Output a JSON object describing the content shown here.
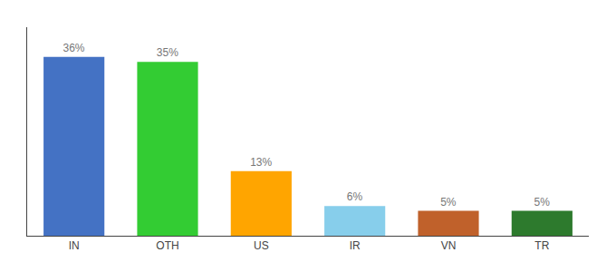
{
  "chart_data": {
    "type": "bar",
    "categories": [
      "IN",
      "OTH",
      "US",
      "IR",
      "VN",
      "TR"
    ],
    "values": [
      36,
      35,
      13,
      6,
      5,
      5
    ],
    "value_labels": [
      "36%",
      "35%",
      "13%",
      "6%",
      "5%",
      "5%"
    ],
    "colors": [
      "#4472C4",
      "#33CC33",
      "#FFA500",
      "#87CEEB",
      "#C0612B",
      "#2D7A2D"
    ],
    "ylim": [
      0,
      42
    ],
    "data_labels": true,
    "tick_labels": "x",
    "grid": false
  }
}
